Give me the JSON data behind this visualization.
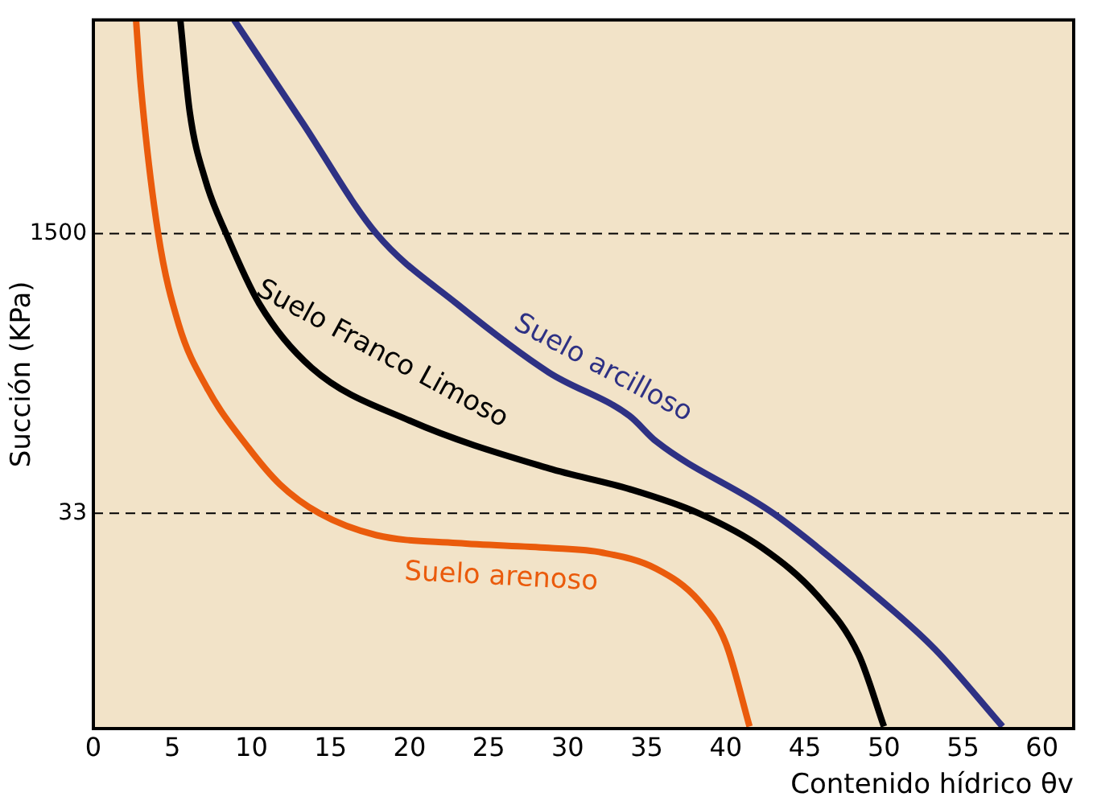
{
  "chart_data": {
    "type": "line",
    "xlabel": "Contenido hídrico θv",
    "ylabel": "Succión (KPa)",
    "log": "y",
    "xlim": [
      0,
      62
    ],
    "xticks": [
      0,
      5,
      10,
      15,
      20,
      25,
      30,
      35,
      40,
      45,
      50,
      55,
      60
    ],
    "ylim": [
      1.75,
      27700
    ],
    "yticks": [
      33,
      1500
    ],
    "grid": false,
    "legend": false,
    "marker": "none",
    "line_style": "solid",
    "ref_lines": [
      {
        "axis": "y",
        "value": 1500,
        "color": "#000000",
        "line_style": "dashed"
      },
      {
        "axis": "y",
        "value": 33,
        "color": "#000000",
        "line_style": "dashed"
      }
    ],
    "series": [
      {
        "name": "Suelo arenoso",
        "color": "#ea5b0c",
        "x": [
          2.7,
          3.0,
          4.1,
          5.4,
          7.2,
          9.8,
          11.8,
          14.3,
          17.9,
          23.0,
          28.8,
          32.2,
          35.6,
          38.3,
          40.0,
          41.5
        ],
        "values": [
          27700,
          11350,
          1500,
          434,
          182,
          81,
          49,
          33,
          24.5,
          22,
          20.6,
          19.3,
          15.5,
          10,
          5.6,
          1.8
        ]
      },
      {
        "name": "Suelo Franco Limoso",
        "color": "#000000",
        "x": [
          5.5,
          6.1,
          7.1,
          8.4,
          10.5,
          13.8,
          20.0,
          28.8,
          33.9,
          38.3,
          42.3,
          45.8,
          48.4,
          50.0
        ],
        "values": [
          27700,
          7840,
          3080,
          1500,
          575,
          241,
          117,
          61,
          46,
          33,
          20.6,
          10.7,
          4.8,
          1.8
        ]
      },
      {
        "name": "Suelo arcilloso",
        "color": "#2e3184",
        "x": [
          8.9,
          13.2,
          17.9,
          23.0,
          28.8,
          33.9,
          35.6,
          43.0,
          49.1,
          53.2,
          57.5
        ],
        "values": [
          27700,
          6880,
          1500,
          575,
          226,
          125,
          88,
          33,
          11.5,
          5.2,
          1.8
        ]
      }
    ]
  }
}
